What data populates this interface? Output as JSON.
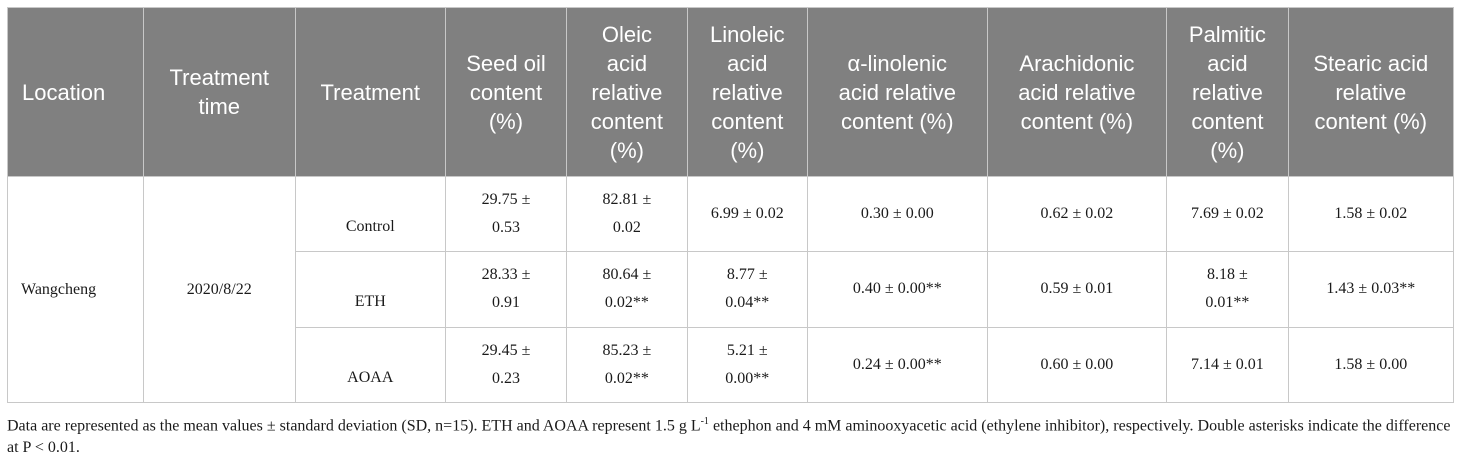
{
  "table": {
    "headers": [
      {
        "key": "location",
        "lines": [
          "Location"
        ]
      },
      {
        "key": "treatment_time",
        "lines": [
          "Treatment",
          "time"
        ]
      },
      {
        "key": "treatment",
        "lines": [
          "Treatment"
        ]
      },
      {
        "key": "seed_oil",
        "lines": [
          "Seed oil",
          "content",
          "(%)"
        ]
      },
      {
        "key": "oleic",
        "lines": [
          "Oleic",
          "acid",
          "relative",
          "content",
          "(%)"
        ]
      },
      {
        "key": "linoleic",
        "lines": [
          "Linoleic",
          "acid",
          "relative",
          "content",
          "(%)"
        ]
      },
      {
        "key": "alpha_linolenic",
        "lines": [
          "α-linolenic",
          "acid relative",
          "content (%)"
        ]
      },
      {
        "key": "arachidonic",
        "lines": [
          "Arachidonic",
          "acid relative",
          "content (%)"
        ]
      },
      {
        "key": "palmitic",
        "lines": [
          "Palmitic",
          "acid",
          "relative",
          "content",
          "(%)"
        ]
      },
      {
        "key": "stearic",
        "lines": [
          "Stearic acid",
          "relative",
          "content (%)"
        ]
      }
    ],
    "location": "Wangcheng",
    "treatment_time": "2020/8/22",
    "rows": [
      {
        "treatment": "Control",
        "seed_oil": [
          "29.75 ±",
          "0.53"
        ],
        "oleic": [
          "82.81 ±",
          "0.02"
        ],
        "linoleic": [
          "6.99 ± 0.02"
        ],
        "alpha_linolenic": [
          "0.30 ± 0.00"
        ],
        "arachidonic": [
          "0.62 ± 0.02"
        ],
        "palmitic": [
          "7.69 ± 0.02"
        ],
        "stearic": [
          "1.58 ± 0.02"
        ]
      },
      {
        "treatment": "ETH",
        "seed_oil": [
          "28.33 ±",
          "0.91"
        ],
        "oleic": [
          "80.64 ±",
          "0.02**"
        ],
        "linoleic": [
          "8.77 ±",
          "0.04**"
        ],
        "alpha_linolenic": [
          "0.40 ± 0.00**"
        ],
        "arachidonic": [
          "0.59 ± 0.01"
        ],
        "palmitic": [
          "8.18 ±",
          "0.01**"
        ],
        "stearic": [
          "1.43 ± 0.03**"
        ]
      },
      {
        "treatment": "AOAA",
        "seed_oil": [
          "29.45 ±",
          "0.23"
        ],
        "oleic": [
          "85.23 ±",
          "0.02**"
        ],
        "linoleic": [
          "5.21 ±",
          "0.00**"
        ],
        "alpha_linolenic": [
          "0.24 ± 0.00**"
        ],
        "arachidonic": [
          "0.60 ± 0.00"
        ],
        "palmitic": [
          "7.14 ± 0.01"
        ],
        "stearic": [
          "1.58 ± 0.00"
        ]
      }
    ]
  },
  "footnote": {
    "part1": "Data are represented as the mean values ± standard deviation (SD, n=15). ETH and AOAA represent 1.5 g L",
    "sup": "-1",
    "part2": " ethephon and 4 mM aminooxyacetic acid (ethylene inhibitor), respectively. Double asterisks indicate the difference at P < 0.01."
  }
}
